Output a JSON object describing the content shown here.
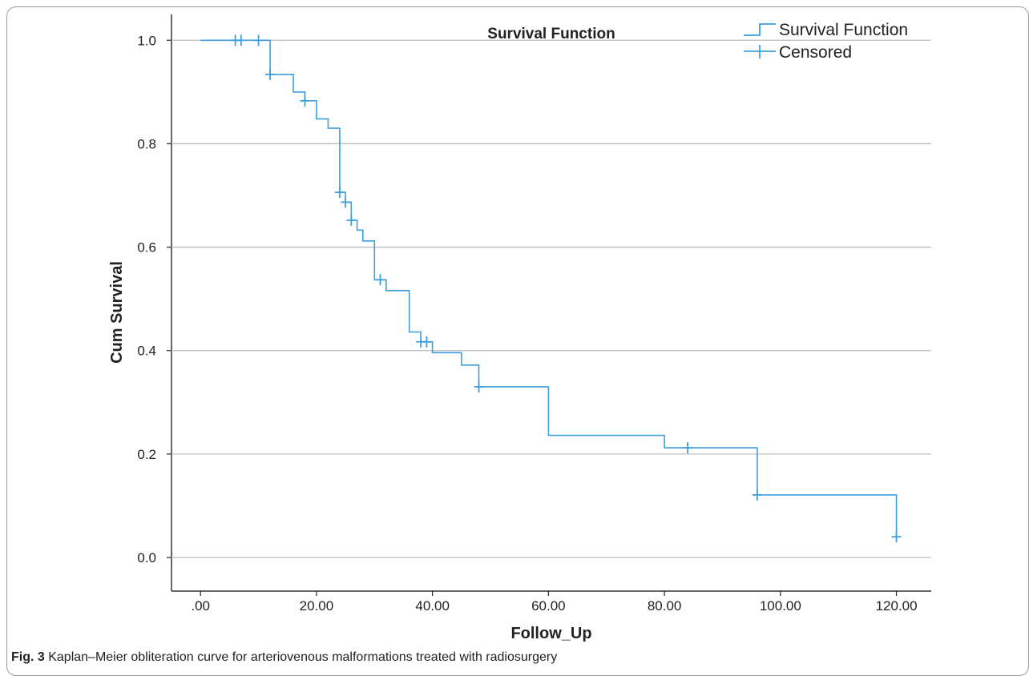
{
  "chart_data": {
    "type": "line",
    "title": "Survival Function",
    "xlabel": "Follow_Up",
    "ylabel": "Cum Survival",
    "xlim": [
      -5,
      126
    ],
    "ylim": [
      -0.065,
      1.05
    ],
    "x_ticks": [
      0,
      20,
      40,
      60,
      80,
      100,
      120
    ],
    "x_tick_labels": [
      ".00",
      "20.00",
      "40.00",
      "60.00",
      "80.00",
      "100.00",
      "120.00"
    ],
    "y_ticks": [
      0.0,
      0.2,
      0.4,
      0.6,
      0.8,
      1.0
    ],
    "y_tick_labels": [
      "0.0",
      "0.2",
      "0.4",
      "0.6",
      "0.8",
      "1.0"
    ],
    "grid": "horizontal",
    "legend_position": "top-right",
    "color": "#3f9fdc",
    "series": [
      {
        "name": "Survival Function",
        "style": "step",
        "x": [
          0,
          12,
          16,
          18,
          20,
          22,
          24,
          25,
          26,
          27,
          28,
          30,
          32,
          36,
          38,
          40,
          45,
          48,
          60,
          80,
          84,
          96,
          120
        ],
        "y": [
          1.0,
          0.934,
          0.9,
          0.883,
          0.848,
          0.83,
          0.706,
          0.687,
          0.652,
          0.633,
          0.612,
          0.537,
          0.516,
          0.436,
          0.417,
          0.396,
          0.372,
          0.33,
          0.236,
          0.212,
          0.212,
          0.121,
          0.04
        ]
      },
      {
        "name": "Censored",
        "style": "marker",
        "x": [
          6,
          7,
          10,
          12,
          18,
          24,
          25,
          26,
          31,
          38,
          39,
          48,
          84,
          96,
          120
        ],
        "y": [
          1.0,
          1.0,
          1.0,
          0.934,
          0.883,
          0.706,
          0.687,
          0.652,
          0.537,
          0.417,
          0.417,
          0.33,
          0.212,
          0.121,
          0.04
        ]
      }
    ]
  },
  "caption": {
    "label": "Fig. 3",
    "text": "Kaplan–Meier obliteration curve for arteriovenous malformations treated with radiosurgery"
  }
}
